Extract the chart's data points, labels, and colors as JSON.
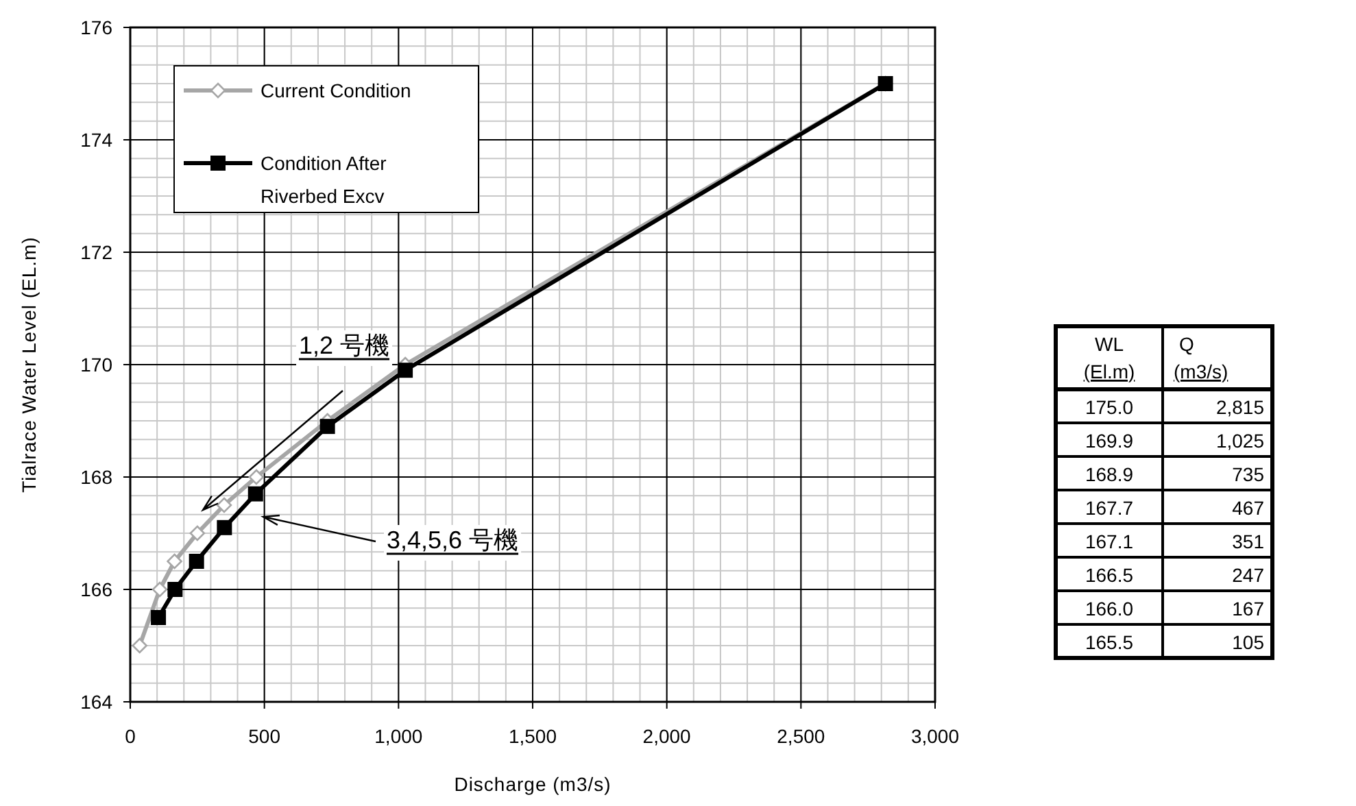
{
  "chart_data": {
    "type": "line",
    "xlabel": "Discharge (m3/s)",
    "ylabel": "Tialrace Water Level (EL.m)",
    "xlim": [
      0,
      3000
    ],
    "ylim": [
      164,
      176
    ],
    "xticks": [
      0,
      500,
      {
        "value": 1000,
        "label": "1,000"
      },
      {
        "value": 1500,
        "label": "1,500"
      },
      {
        "value": 2000,
        "label": "2,000"
      },
      {
        "value": 2500,
        "label": "2,500"
      },
      {
        "value": 3000,
        "label": "3,000"
      }
    ],
    "yticks": [
      164,
      166,
      168,
      170,
      172,
      174,
      176
    ],
    "grid": true,
    "legend": "top left",
    "series": [
      {
        "name": "Current Condition",
        "color": "#a6a6a6",
        "marker": "diamond",
        "x": [
          35,
          110,
          165,
          250,
          350,
          470,
          735,
          1025,
          2815
        ],
        "values": [
          165.0,
          166.0,
          166.5,
          167.0,
          167.5,
          168.0,
          169.0,
          170.0,
          175.0
        ]
      },
      {
        "name": "Condition After Riverbed Excv",
        "color": "#000000",
        "marker": "square",
        "x": [
          105,
          167,
          247,
          351,
          467,
          735,
          1025,
          2815
        ],
        "values": [
          165.5,
          166.0,
          166.5,
          167.1,
          167.7,
          168.9,
          169.9,
          175.0
        ]
      }
    ],
    "annotations": [
      "1,2 号機",
      "3,4,5,6 号機",
      "WL",
      "(El.m)",
      "Q",
      "(m3/s)",
      "175.0",
      "2,815",
      "169.9",
      "1,025",
      "168.9",
      "735",
      "167.7",
      "467",
      "167.1",
      "351",
      "166.5",
      "247",
      "166.0",
      "167",
      "165.5",
      "105"
    ]
  }
}
